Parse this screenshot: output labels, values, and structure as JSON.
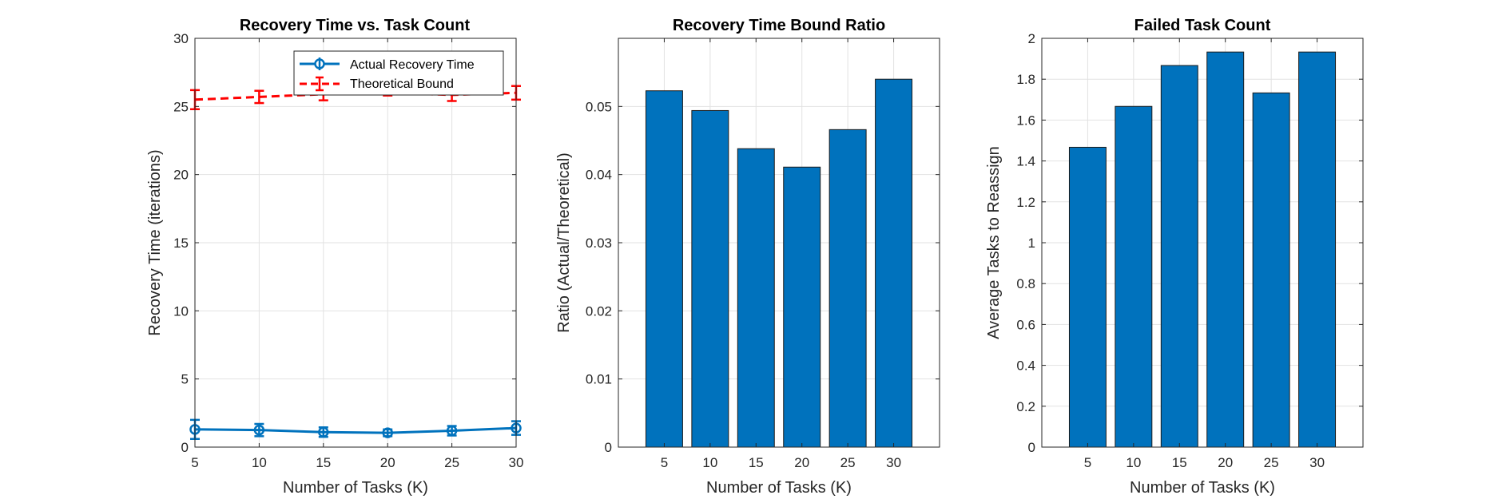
{
  "chart_data": [
    {
      "type": "line",
      "title": "Recovery Time vs. Task Count",
      "xlabel": "Number of Tasks (K)",
      "ylabel": "Recovery Time (iterations)",
      "x": [
        5,
        10,
        15,
        20,
        25,
        30
      ],
      "xlim": [
        5,
        30
      ],
      "xticks": [
        5,
        10,
        15,
        20,
        25,
        30
      ],
      "ylim": [
        0,
        30
      ],
      "yticks": [
        0,
        5,
        10,
        15,
        20,
        25,
        30
      ],
      "grid": true,
      "legend_position": "top-right",
      "series": [
        {
          "name": "Actual Recovery Time",
          "color": "#0072BD",
          "style": "solid",
          "marker": "circle",
          "values": [
            1.3,
            1.25,
            1.1,
            1.05,
            1.2,
            1.4
          ],
          "errors": [
            0.7,
            0.45,
            0.35,
            0.25,
            0.35,
            0.5
          ]
        },
        {
          "name": "Theoretical Bound",
          "color": "#FF0000",
          "style": "dashed",
          "marker": "none",
          "values": [
            25.5,
            25.7,
            25.9,
            26.0,
            25.85,
            26.0
          ],
          "errors": [
            0.7,
            0.45,
            0.45,
            0.2,
            0.45,
            0.5
          ]
        }
      ]
    },
    {
      "type": "bar",
      "title": "Recovery Time Bound Ratio",
      "xlabel": "Number of Tasks (K)",
      "ylabel": "Ratio (Actual/Theoretical)",
      "categories": [
        "5",
        "10",
        "15",
        "20",
        "25",
        "30"
      ],
      "values": [
        0.0523,
        0.0494,
        0.0438,
        0.0411,
        0.0466,
        0.054
      ],
      "ylim": [
        0,
        0.06
      ],
      "yticks": [
        "0",
        "0.01",
        "0.02",
        "0.03",
        "0.04",
        "0.05"
      ],
      "grid": true,
      "color": "#0072BD"
    },
    {
      "type": "bar",
      "title": "Failed Task Count",
      "xlabel": "Number of Tasks (K)",
      "ylabel": "Average Tasks to Reassign",
      "categories": [
        "5",
        "10",
        "15",
        "20",
        "25",
        "30"
      ],
      "values": [
        1.467,
        1.667,
        1.867,
        1.933,
        1.733,
        1.933
      ],
      "ylim": [
        0,
        2
      ],
      "yticks": [
        "0",
        "0.2",
        "0.4",
        "0.6",
        "0.8",
        "1",
        "1.2",
        "1.4",
        "1.6",
        "1.8",
        "2"
      ],
      "grid": true,
      "color": "#0072BD"
    }
  ]
}
